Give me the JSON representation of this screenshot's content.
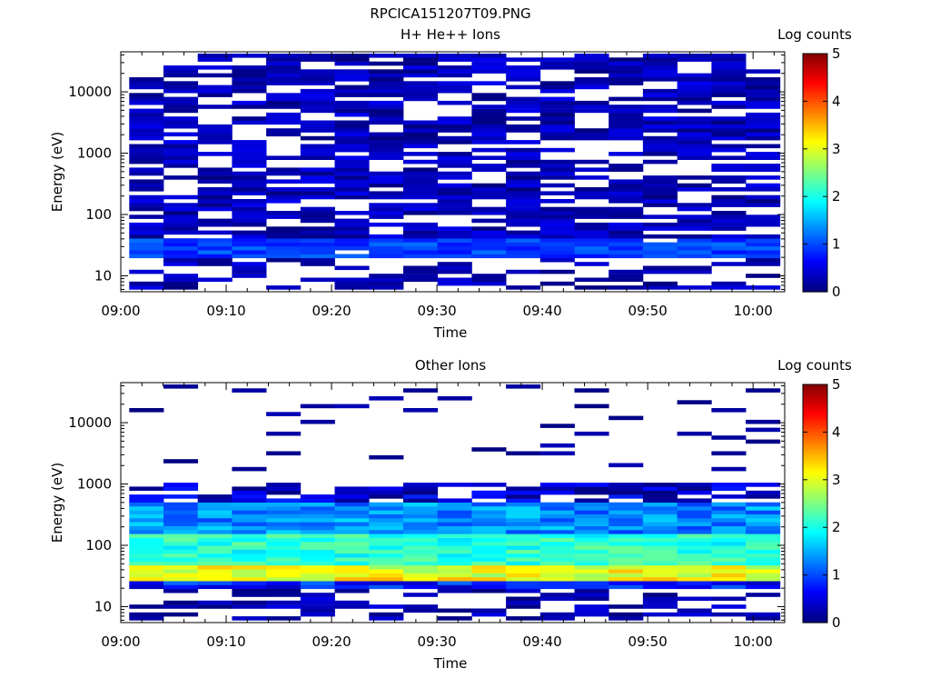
{
  "figure_title": "RPCICA151207T09.PNG",
  "chart_data": [
    {
      "type": "heatmap",
      "title": "H+ He++ Ions",
      "xlabel": "Time",
      "ylabel": "Energy (eV)",
      "x_ticks": [
        "09:00",
        "09:10",
        "09:20",
        "09:30",
        "09:40",
        "09:50",
        "10:00"
      ],
      "x_range_minutes": [
        0,
        63
      ],
      "y_scale": "log",
      "y_ticks": [
        "10",
        "100",
        "1000",
        "10000"
      ],
      "y_range": [
        5.5,
        45000
      ],
      "colorbar": {
        "label": "Log counts",
        "min": 0,
        "max": 5,
        "ticks": [
          "0",
          "1",
          "2",
          "3",
          "4",
          "5"
        ]
      },
      "description_levels": "sparse low counts (mostly 0-1 log counts) across all energies; slightly higher (~1) near 20-40 eV",
      "grid": false
    },
    {
      "type": "heatmap",
      "title": "Other Ions",
      "xlabel": "Time",
      "ylabel": "Energy (eV)",
      "x_ticks": [
        "09:00",
        "09:10",
        "09:20",
        "09:30",
        "09:40",
        "09:50",
        "10:00"
      ],
      "x_range_minutes": [
        0,
        63
      ],
      "y_scale": "log",
      "y_ticks": [
        "10",
        "100",
        "1000",
        "10000"
      ],
      "y_range": [
        5.5,
        45000
      ],
      "colorbar": {
        "label": "Log counts",
        "min": 0,
        "max": 5,
        "ticks": [
          "0",
          "1",
          "2",
          "3",
          "4",
          "5"
        ]
      },
      "description_levels": "dense band 20-600 eV; peak ~3-3.5 log counts near 30-40 eV; scattered low counts above 1000 eV",
      "grid": false
    }
  ]
}
